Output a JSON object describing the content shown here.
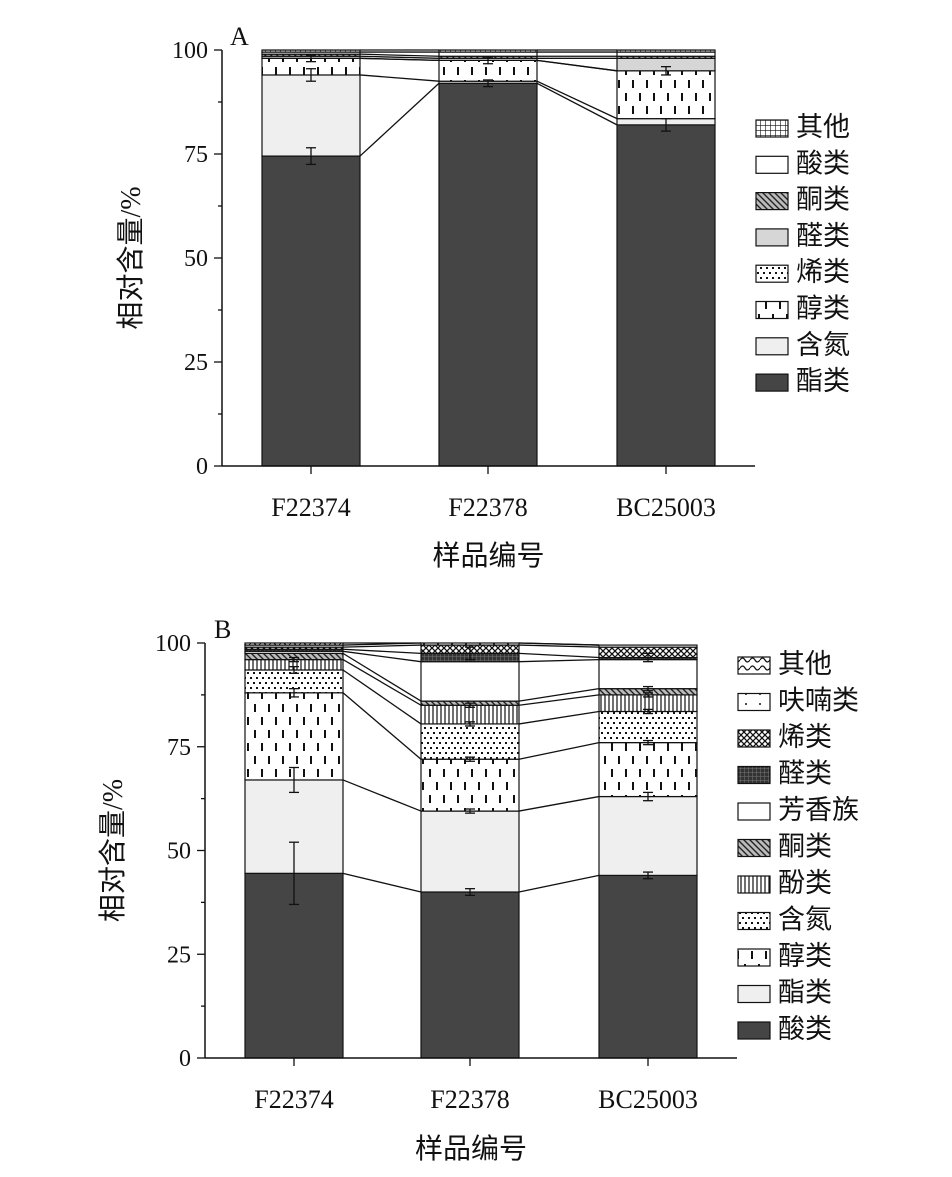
{
  "chart_data": [
    {
      "type": "stacked-bar",
      "panel_label": "A",
      "xlabel": "样品编号",
      "ylabel": "相对含量/%",
      "ylim": [
        0,
        100
      ],
      "yticks": [
        "0",
        "25",
        "50",
        "75",
        "100"
      ],
      "categories": [
        "F22374",
        "F22378",
        "BC25003"
      ],
      "legend_order_top_to_bottom": [
        "其他",
        "酸类",
        "酮类",
        "醛类",
        "烯类",
        "醇类",
        "含氮",
        "酯类"
      ],
      "series": [
        {
          "name": "酯类",
          "pattern": "solid-dark",
          "values": [
            74.5,
            92.0,
            82.0
          ],
          "error": [
            2.0,
            0.8,
            1.5
          ]
        },
        {
          "name": "含氮",
          "pattern": "light-gray",
          "values": [
            19.5,
            0.5,
            1.5
          ],
          "error": [
            1.5,
            0,
            0
          ]
        },
        {
          "name": "醇类",
          "pattern": "vertical-dashes",
          "values": [
            4.0,
            5.0,
            11.5
          ],
          "error": [
            0.8,
            0.8,
            1.0
          ]
        },
        {
          "name": "烯类",
          "pattern": "dotted",
          "values": [
            0.0,
            0.0,
            0.0
          ],
          "error": [
            0,
            0,
            0
          ]
        },
        {
          "name": "醛类",
          "pattern": "gray",
          "values": [
            0.5,
            0.5,
            3.0
          ],
          "error": [
            0,
            0,
            0
          ]
        },
        {
          "name": "酮类",
          "pattern": "diagonal",
          "values": [
            0.5,
            0.5,
            0.5
          ],
          "error": [
            0,
            0,
            0
          ]
        },
        {
          "name": "酸类",
          "pattern": "white",
          "values": [
            0.5,
            1.0,
            1.0
          ],
          "error": [
            0,
            0,
            0
          ]
        },
        {
          "name": "其他",
          "pattern": "grid",
          "values": [
            0.5,
            0.5,
            0.5
          ],
          "error": [
            0,
            0,
            0
          ]
        }
      ]
    },
    {
      "type": "stacked-bar",
      "panel_label": "B",
      "xlabel": "样品编号",
      "ylabel": "相对含量/%",
      "ylim": [
        0,
        100
      ],
      "yticks": [
        "0",
        "25",
        "50",
        "75",
        "100"
      ],
      "categories": [
        "F22374",
        "F22378",
        "BC25003"
      ],
      "legend_order_top_to_bottom": [
        "其他",
        "呋喃类",
        "烯类",
        "醛类",
        "芳香族",
        "酮类",
        "酚类",
        "含氮",
        "醇类",
        "酯类",
        "酸类"
      ],
      "series": [
        {
          "name": "酸类",
          "pattern": "solid-dark",
          "values": [
            44.5,
            40.0,
            44.0
          ],
          "error": [
            7.5,
            0.8,
            0.8
          ]
        },
        {
          "name": "酯类",
          "pattern": "light-gray",
          "values": [
            22.5,
            19.5,
            19.0
          ],
          "error": [
            3.0,
            0.5,
            1.0
          ]
        },
        {
          "name": "醇类",
          "pattern": "vertical-dashes",
          "values": [
            21.0,
            12.5,
            13.0
          ],
          "error": [
            1.0,
            0.5,
            0.5
          ]
        },
        {
          "name": "含氮",
          "pattern": "dotted",
          "values": [
            5.5,
            8.5,
            7.5
          ],
          "error": [
            0.8,
            0.5,
            0.5
          ]
        },
        {
          "name": "酚类",
          "pattern": "vertical-lines",
          "values": [
            2.5,
            4.5,
            4.0
          ],
          "error": [
            0.5,
            0.5,
            0.5
          ]
        },
        {
          "name": "酮类",
          "pattern": "diagonal",
          "values": [
            1.5,
            1.0,
            1.5
          ],
          "error": [
            0,
            0,
            0.5
          ]
        },
        {
          "name": "芳香族",
          "pattern": "white",
          "values": [
            0.5,
            9.5,
            7.0
          ],
          "error": [
            0,
            0,
            0
          ]
        },
        {
          "name": "醛类",
          "pattern": "crosshatch-dark",
          "values": [
            0.5,
            2.0,
            0.5
          ],
          "error": [
            0,
            1.5,
            1.0
          ]
        },
        {
          "name": "烯类",
          "pattern": "crosshatch",
          "values": [
            0.5,
            2.0,
            2.5
          ],
          "error": [
            0,
            0,
            0
          ]
        },
        {
          "name": "呋喃类",
          "pattern": "white-dots",
          "values": [
            0.5,
            0.5,
            0.5
          ],
          "error": [
            0,
            0,
            0
          ]
        },
        {
          "name": "其他",
          "pattern": "wave",
          "values": [
            0.5,
            0.0,
            0.0
          ],
          "error": [
            0,
            0,
            0
          ]
        }
      ]
    }
  ]
}
